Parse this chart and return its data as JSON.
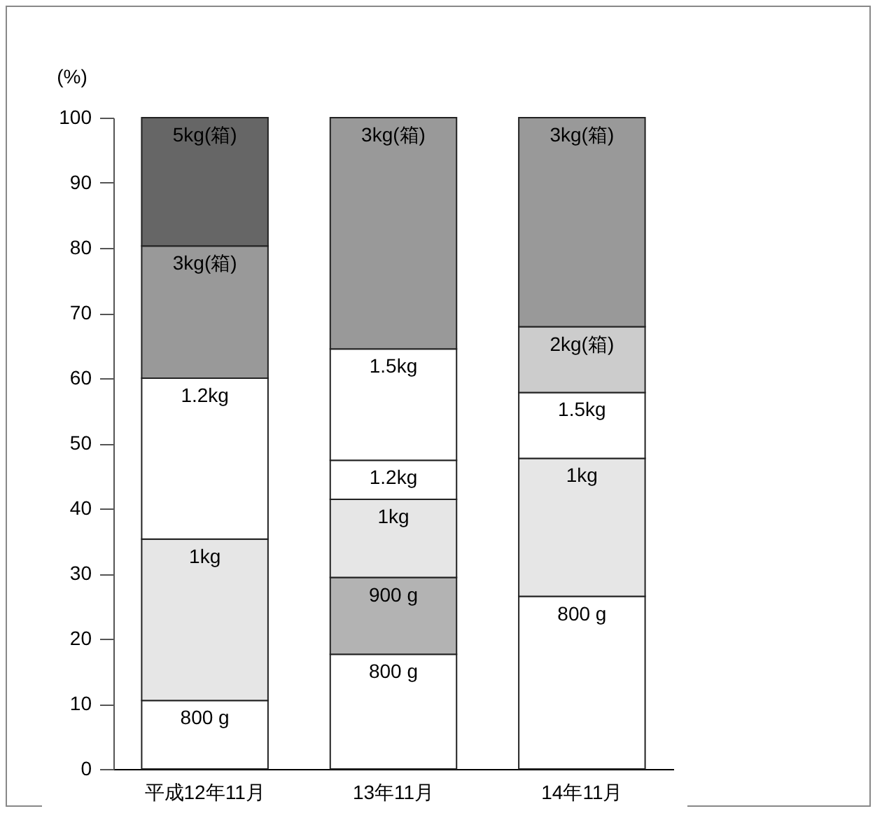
{
  "chart_data": {
    "type": "bar",
    "stacked": true,
    "ylabel": "(%)",
    "categories": [
      "平成12年11月",
      "13年11月",
      "14年11月"
    ],
    "ylim": [
      0,
      100
    ],
    "yticks": [
      0,
      10,
      20,
      30,
      40,
      50,
      60,
      70,
      80,
      90,
      100
    ],
    "legend": false,
    "series": [
      {
        "name": "800 g",
        "color": "#ffffff",
        "values": [
          10.5,
          17.6,
          26.5
        ]
      },
      {
        "name": "900 g",
        "color": "#b3b3b3",
        "values": [
          null,
          11.8,
          null
        ]
      },
      {
        "name": "1kg",
        "color": "#e6e6e6",
        "values": [
          24.8,
          12.0,
          21.2
        ]
      },
      {
        "name": "1.2kg",
        "color": "#ffffff",
        "values": [
          24.7,
          6.0,
          null
        ]
      },
      {
        "name": "1.5kg",
        "color": "#ffffff",
        "values": [
          null,
          17.1,
          10.1
        ]
      },
      {
        "name": "2kg(箱)",
        "color": "#cccccc",
        "values": [
          null,
          null,
          10.1
        ]
      },
      {
        "name": "3kg(箱)",
        "color": "#999999",
        "values": [
          20.3,
          35.5,
          32.1
        ]
      },
      {
        "name": "5kg(箱)",
        "color": "#666666",
        "values": [
          19.7,
          null,
          null
        ]
      }
    ]
  }
}
